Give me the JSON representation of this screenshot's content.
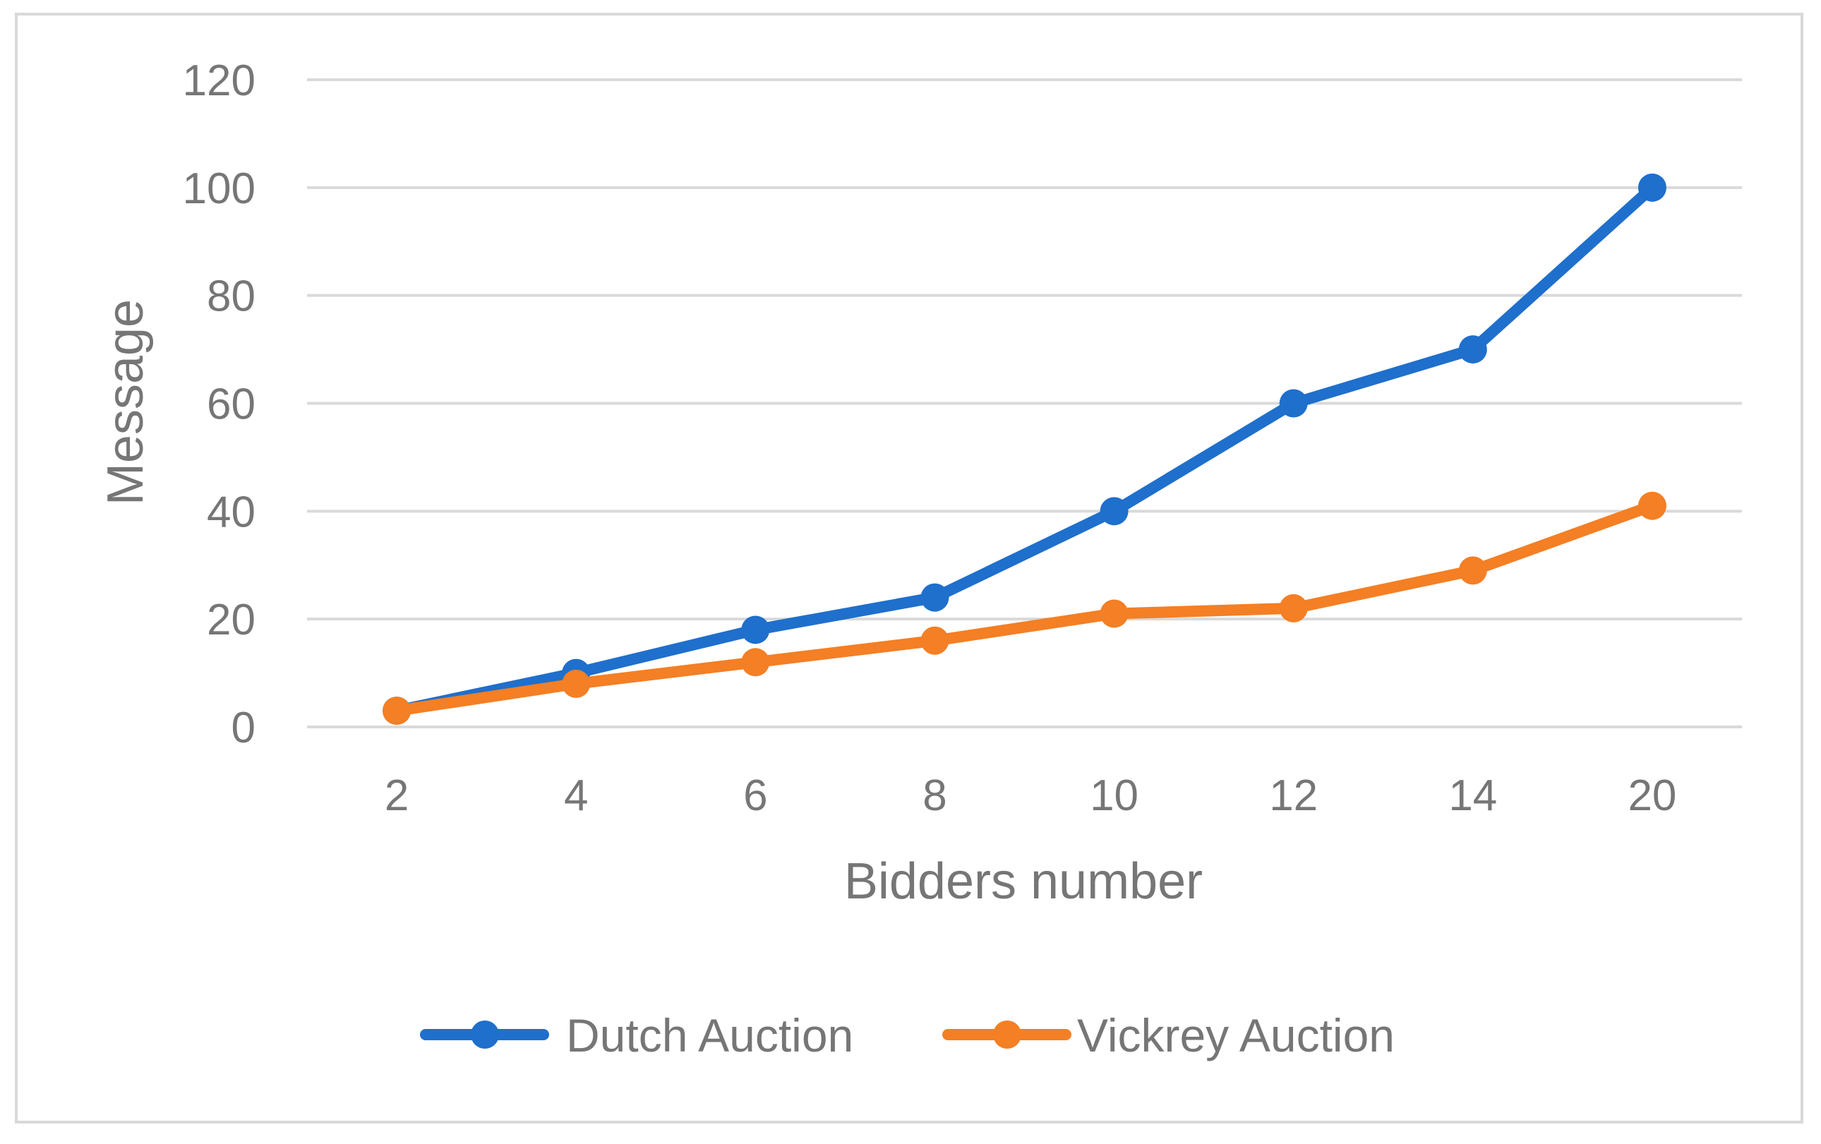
{
  "chart_data": {
    "type": "line",
    "title": "",
    "xlabel": "Bidders number",
    "ylabel": "Message",
    "categories": [
      "2",
      "4",
      "6",
      "8",
      "10",
      "12",
      "14",
      "20"
    ],
    "ylim": [
      0,
      120
    ],
    "yticks": [
      "0",
      "20",
      "40",
      "60",
      "80",
      "100",
      "120"
    ],
    "grid": true,
    "legend_position": "bottom",
    "series": [
      {
        "name": "Dutch Auction",
        "color": "#1f6fcc",
        "values": [
          3,
          10,
          18,
          24,
          40,
          60,
          70,
          100
        ]
      },
      {
        "name": "Vickrey Auction",
        "color": "#f47f24",
        "values": [
          3,
          8,
          12,
          16,
          21,
          22,
          29,
          41
        ]
      }
    ]
  }
}
